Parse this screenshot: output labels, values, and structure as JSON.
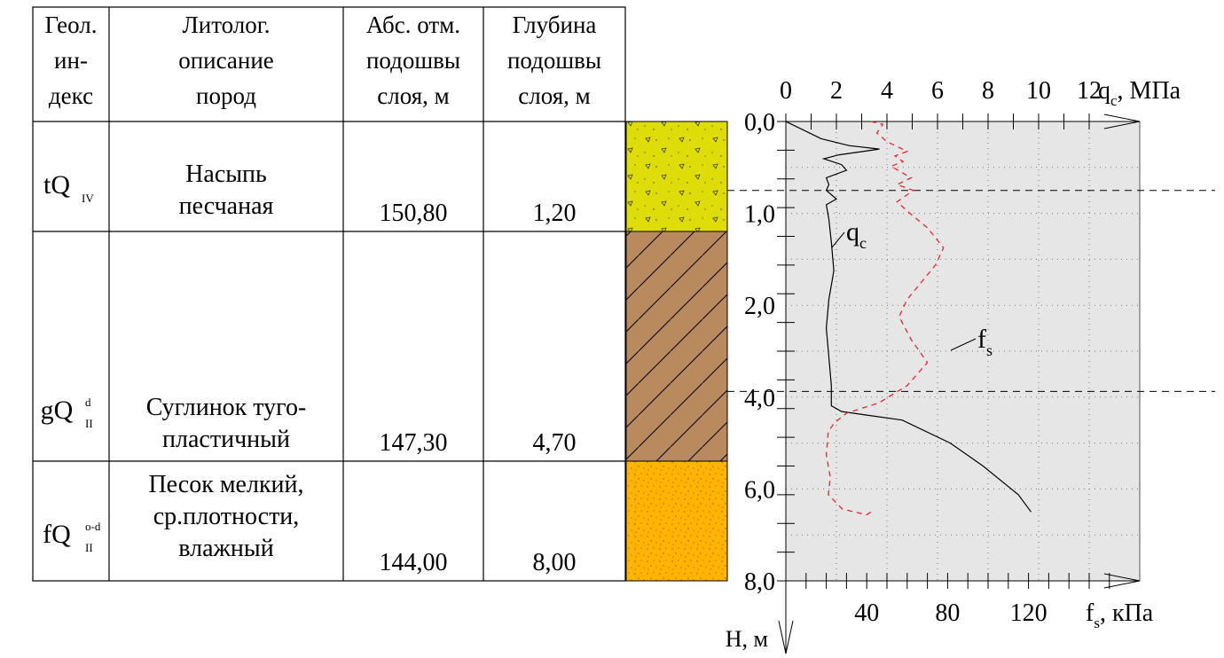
{
  "table": {
    "headers": [
      [
        "Геол.",
        "ин-",
        "декс"
      ],
      [
        "Литолог.",
        "описание",
        "пород"
      ],
      [
        "Абс. отм.",
        "подошвы",
        "слоя, м"
      ],
      [
        "Глубина",
        "подошвы",
        "слоя, м"
      ]
    ],
    "layers": [
      {
        "index_base": "tQ",
        "index_sup": "",
        "index_sub": "IV",
        "description": [
          "Насыпь",
          "песчаная"
        ],
        "abs_mark": "150,80",
        "depth": "1,20",
        "top_depth": 0.0,
        "bottom_depth": 1.2,
        "color": "#dedd0a",
        "pattern": "fill-soil"
      },
      {
        "index_base": "gQ",
        "index_sup": "d",
        "index_sub": "II",
        "description": [
          "Суглинок туго-",
          "пластичный"
        ],
        "abs_mark": "147,30",
        "depth": "4,70",
        "top_depth": 1.2,
        "bottom_depth": 4.7,
        "color": "#b88a5e",
        "pattern": "hatch"
      },
      {
        "index_base": "fQ",
        "index_sup": "o-d",
        "index_sub": "II",
        "description": [
          "Песок мелкий,",
          "ср.плотности,",
          "влажный"
        ],
        "abs_mark": "144,00",
        "depth": "8,00",
        "top_depth": 4.7,
        "bottom_depth": 8.0,
        "color": "#ffb400",
        "pattern": "sand-dots"
      }
    ]
  },
  "chart_data": {
    "type": "line",
    "background": "#e6e6e6",
    "grid": true,
    "y": {
      "label": "H, м",
      "range": [
        0,
        8
      ],
      "ticks": [
        {
          "label": "0,0",
          "value": 0
        },
        {
          "label": "1,0",
          "value": 1
        },
        {
          "label": "2,0",
          "value": 2
        },
        {
          "label": "4,0",
          "value": 4
        },
        {
          "label": "6,0",
          "value": 6
        },
        {
          "label": "8,0",
          "value": 8
        }
      ],
      "note": "depth axis; tick labels beyond 1,0 are not uniformly spaced"
    },
    "x_top": {
      "label_base": "q",
      "label_sub": "c",
      "label_unit": ", МПа",
      "range": [
        0,
        14
      ],
      "ticks": [
        "0",
        "2",
        "4",
        "6",
        "8",
        "10",
        "12"
      ]
    },
    "x_bottom": {
      "label_base": "f",
      "label_sub": "s",
      "label_unit": ", кПа",
      "range": [
        0,
        175
      ],
      "ticks": [
        "40",
        "80",
        "120"
      ]
    },
    "layer_boundaries": [
      1.2,
      4.7
    ],
    "series": [
      {
        "name": "q",
        "name_sub": "c",
        "axis": "top",
        "color": "#000000",
        "style": "solid",
        "points": [
          [
            0.0,
            0.0
          ],
          [
            1.4,
            0.3
          ],
          [
            2.5,
            0.42
          ],
          [
            3.7,
            0.48
          ],
          [
            2.1,
            0.58
          ],
          [
            1.5,
            0.65
          ],
          [
            2.2,
            0.75
          ],
          [
            2.4,
            0.85
          ],
          [
            1.6,
            0.98
          ],
          [
            1.7,
            1.1
          ],
          [
            1.6,
            1.2
          ],
          [
            2.0,
            1.35
          ],
          [
            1.6,
            1.45
          ],
          [
            1.7,
            1.7
          ],
          [
            1.8,
            2.1
          ],
          [
            1.9,
            2.6
          ],
          [
            1.7,
            3.1
          ],
          [
            1.6,
            3.6
          ],
          [
            1.7,
            4.1
          ],
          [
            1.8,
            4.6
          ],
          [
            1.8,
            4.95
          ],
          [
            2.2,
            5.05
          ],
          [
            3.3,
            5.12
          ],
          [
            4.6,
            5.2
          ],
          [
            6.5,
            5.6
          ],
          [
            7.8,
            6.0
          ],
          [
            9.2,
            6.5
          ],
          [
            9.7,
            6.8
          ]
        ]
      },
      {
        "name": "f",
        "name_sub": "s",
        "axis": "bottom",
        "color": "#e0282d",
        "style": "dashed",
        "points": [
          [
            42,
            0.0
          ],
          [
            48,
            0.05
          ],
          [
            45,
            0.2
          ],
          [
            50,
            0.35
          ],
          [
            60,
            0.52
          ],
          [
            54,
            0.6
          ],
          [
            58,
            0.7
          ],
          [
            52,
            0.78
          ],
          [
            62,
            0.98
          ],
          [
            55,
            1.1
          ],
          [
            63,
            1.2
          ],
          [
            55,
            1.4
          ],
          [
            62,
            1.62
          ],
          [
            70,
            1.85
          ],
          [
            78,
            2.2
          ],
          [
            74,
            2.5
          ],
          [
            67,
            2.8
          ],
          [
            60,
            3.1
          ],
          [
            56,
            3.4
          ],
          [
            62,
            3.8
          ],
          [
            70,
            4.2
          ],
          [
            60,
            4.6
          ],
          [
            46,
            4.9
          ],
          [
            30,
            5.08
          ],
          [
            24,
            5.25
          ],
          [
            21,
            5.4
          ],
          [
            20,
            5.8
          ],
          [
            22,
            6.2
          ],
          [
            21,
            6.5
          ],
          [
            28,
            6.75
          ],
          [
            40,
            6.85
          ],
          [
            42,
            6.8
          ]
        ]
      }
    ]
  }
}
